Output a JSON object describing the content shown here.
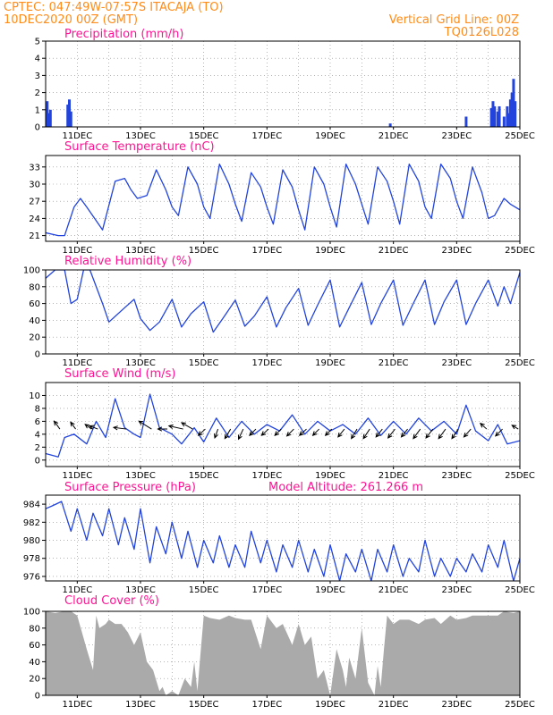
{
  "header": {
    "station": "CPTEC:   047:49W-07:57S   ITACAJA (TO)",
    "run": "10DEC2020 00Z (GMT)",
    "grid_note": "Vertical Grid Line: 00Z",
    "code": "TQ0126L028"
  },
  "colors": {
    "line": "#2244dd",
    "bar": "#2244dd",
    "cloud": "#aaaaaa",
    "grid": "#888888",
    "arrow": "#000000",
    "header": "#ff8c1a",
    "title": "#ff1493"
  },
  "xaxis": {
    "start_day": 10.0,
    "end_day": 25.0,
    "tick_days": [
      11,
      13,
      15,
      17,
      19,
      21,
      23,
      25
    ],
    "tick_labels": [
      "11DEC",
      "13DEC",
      "15DEC",
      "17DEC",
      "19DEC",
      "21DEC",
      "23DEC",
      "25DEC"
    ]
  },
  "chart_data": [
    {
      "id": "precip",
      "type": "bar",
      "title": "Precipitation (mm/h)",
      "units": "mm/h",
      "ylim": [
        0,
        5
      ],
      "yticks": [
        0,
        1,
        2,
        3,
        4,
        5
      ],
      "grid": true,
      "x_day": [
        10.05,
        10.1,
        10.15,
        10.7,
        10.75,
        10.8,
        20.9,
        23.3,
        24.1,
        24.15,
        24.2,
        24.3,
        24.35,
        24.5,
        24.6,
        24.65,
        24.7,
        24.75,
        24.8,
        24.85
      ],
      "values": [
        1.5,
        0.8,
        1.0,
        1.3,
        1.6,
        0.9,
        0.2,
        0.6,
        1.1,
        1.5,
        1.2,
        0.9,
        1.2,
        0.6,
        1.2,
        0.8,
        1.6,
        2.0,
        2.8,
        1.5
      ]
    },
    {
      "id": "temp",
      "type": "line",
      "title": "Surface Temperature (nC)",
      "units": "C",
      "ylim": [
        20,
        35
      ],
      "yticks": [
        21,
        24,
        27,
        30,
        33
      ],
      "grid": true,
      "x_day": [
        10.0,
        10.4,
        10.6,
        10.9,
        11.1,
        11.3,
        11.8,
        12.2,
        12.5,
        12.7,
        12.9,
        13.2,
        13.5,
        13.8,
        14.0,
        14.2,
        14.5,
        14.8,
        15.0,
        15.2,
        15.5,
        15.8,
        16.0,
        16.2,
        16.5,
        16.8,
        17.0,
        17.2,
        17.5,
        17.8,
        18.0,
        18.2,
        18.5,
        18.8,
        19.0,
        19.2,
        19.5,
        19.8,
        20.0,
        20.2,
        20.5,
        20.8,
        21.0,
        21.2,
        21.5,
        21.8,
        22.0,
        22.2,
        22.5,
        22.8,
        23.0,
        23.2,
        23.5,
        23.8,
        24.0,
        24.2,
        24.5,
        24.7,
        25.0
      ],
      "values": [
        21.5,
        21.0,
        21.0,
        26.0,
        27.5,
        26.0,
        22.0,
        30.5,
        31.0,
        29.0,
        27.5,
        28.0,
        32.5,
        29.0,
        26.0,
        24.5,
        33.0,
        30.0,
        26.0,
        24.0,
        33.5,
        30.0,
        26.5,
        23.5,
        32.0,
        29.5,
        26.0,
        23.0,
        32.5,
        29.5,
        25.5,
        22.0,
        33.0,
        30.0,
        26.0,
        22.5,
        33.5,
        30.0,
        26.5,
        23.0,
        33.0,
        30.5,
        27.0,
        23.0,
        33.5,
        30.5,
        26.0,
        24.0,
        33.5,
        31.0,
        27.0,
        24.0,
        33.0,
        28.5,
        24.0,
        24.5,
        27.5,
        26.5,
        25.5
      ]
    },
    {
      "id": "rh",
      "type": "line",
      "title": "Relative Humidity (%)",
      "units": "%",
      "ylim": [
        0,
        100
      ],
      "yticks": [
        0,
        20,
        40,
        60,
        80,
        100
      ],
      "grid": true,
      "x_day": [
        10.0,
        10.3,
        10.6,
        10.8,
        11.0,
        11.2,
        11.4,
        11.8,
        12.0,
        12.5,
        12.8,
        13.0,
        13.3,
        13.6,
        14.0,
        14.3,
        14.6,
        15.0,
        15.3,
        15.6,
        16.0,
        16.3,
        16.6,
        17.0,
        17.3,
        17.6,
        18.0,
        18.3,
        18.6,
        19.0,
        19.3,
        19.6,
        20.0,
        20.3,
        20.6,
        21.0,
        21.3,
        21.6,
        22.0,
        22.3,
        22.6,
        23.0,
        23.3,
        23.6,
        24.0,
        24.3,
        24.5,
        24.7,
        25.0
      ],
      "values": [
        90,
        100,
        100,
        60,
        65,
        100,
        100,
        60,
        38,
        55,
        65,
        42,
        28,
        38,
        65,
        32,
        48,
        62,
        26,
        42,
        64,
        33,
        45,
        68,
        32,
        55,
        78,
        34,
        58,
        88,
        32,
        55,
        85,
        35,
        60,
        88,
        34,
        58,
        88,
        35,
        62,
        88,
        35,
        60,
        88,
        57,
        80,
        60,
        97
      ]
    },
    {
      "id": "wind",
      "type": "line",
      "title": "Surface Wind (m/s)",
      "units": "m/s",
      "ylim": [
        -1,
        12
      ],
      "yticks": [
        0,
        2,
        4,
        6,
        8,
        10
      ],
      "grid": true,
      "x_day": [
        10.0,
        10.4,
        10.6,
        10.9,
        11.3,
        11.6,
        11.9,
        12.2,
        12.5,
        12.8,
        13.0,
        13.3,
        13.6,
        14.0,
        14.3,
        14.7,
        15.0,
        15.4,
        15.8,
        16.2,
        16.6,
        17.0,
        17.4,
        17.8,
        18.2,
        18.6,
        19.0,
        19.4,
        19.8,
        20.2,
        20.6,
        21.0,
        21.4,
        21.8,
        22.2,
        22.6,
        23.0,
        23.3,
        23.6,
        24.0,
        24.3,
        24.6,
        25.0
      ],
      "values": [
        1.0,
        0.5,
        3.5,
        4.0,
        2.5,
        6.0,
        3.5,
        9.5,
        5.0,
        4.0,
        3.5,
        10.2,
        5.0,
        4.0,
        2.5,
        5.0,
        2.8,
        6.5,
        3.5,
        6.0,
        4.0,
        5.5,
        4.5,
        7.0,
        4.0,
        6.0,
        4.5,
        5.5,
        4.0,
        6.5,
        3.8,
        6.0,
        4.0,
        6.5,
        4.5,
        6.0,
        4.0,
        8.5,
        4.5,
        3.0,
        5.5,
        2.5,
        3.0
      ],
      "arrows": [
        {
          "x": 10.45,
          "dx": -0.18,
          "dy": 0.25
        },
        {
          "x": 10.95,
          "dx": -0.16,
          "dy": 0.22
        },
        {
          "x": 11.45,
          "dx": -0.2,
          "dy": 0.15
        },
        {
          "x": 11.65,
          "dx": -0.26,
          "dy": 0.1
        },
        {
          "x": 12.55,
          "dx": -0.4,
          "dy": 0.05
        },
        {
          "x": 13.35,
          "dx": -0.4,
          "dy": 0.25
        },
        {
          "x": 13.85,
          "dx": -0.3,
          "dy": 0.0
        },
        {
          "x": 14.35,
          "dx": -0.45,
          "dy": 0.1
        },
        {
          "x": 14.65,
          "dx": -0.35,
          "dy": 0.2
        },
        {
          "x": 15.05,
          "dx": -0.22,
          "dy": -0.2
        },
        {
          "x": 15.45,
          "dx": -0.1,
          "dy": -0.28
        },
        {
          "x": 15.85,
          "dx": -0.18,
          "dy": -0.3
        },
        {
          "x": 16.25,
          "dx": -0.15,
          "dy": -0.32
        },
        {
          "x": 16.65,
          "dx": -0.2,
          "dy": -0.2
        },
        {
          "x": 17.05,
          "dx": -0.22,
          "dy": -0.2
        },
        {
          "x": 17.45,
          "dx": -0.2,
          "dy": -0.2
        },
        {
          "x": 17.85,
          "dx": -0.22,
          "dy": -0.22
        },
        {
          "x": 18.25,
          "dx": -0.22,
          "dy": -0.2
        },
        {
          "x": 18.65,
          "dx": -0.2,
          "dy": -0.2
        },
        {
          "x": 19.05,
          "dx": -0.2,
          "dy": -0.2
        },
        {
          "x": 19.45,
          "dx": -0.2,
          "dy": -0.25
        },
        {
          "x": 19.85,
          "dx": -0.18,
          "dy": -0.3
        },
        {
          "x": 20.25,
          "dx": -0.2,
          "dy": -0.3
        },
        {
          "x": 20.65,
          "dx": -0.2,
          "dy": -0.25
        },
        {
          "x": 21.05,
          "dx": -0.22,
          "dy": -0.28
        },
        {
          "x": 21.45,
          "dx": -0.2,
          "dy": -0.25
        },
        {
          "x": 21.85,
          "dx": -0.22,
          "dy": -0.3
        },
        {
          "x": 22.25,
          "dx": -0.22,
          "dy": -0.28
        },
        {
          "x": 22.65,
          "dx": -0.22,
          "dy": -0.3
        },
        {
          "x": 23.05,
          "dx": -0.2,
          "dy": -0.3
        },
        {
          "x": 23.45,
          "dx": -0.22,
          "dy": -0.25
        },
        {
          "x": 23.95,
          "dx": -0.2,
          "dy": 0.18
        },
        {
          "x": 24.45,
          "dx": -0.22,
          "dy": -0.22
        },
        {
          "x": 24.95,
          "dx": -0.2,
          "dy": 0.12
        }
      ]
    },
    {
      "id": "pressure",
      "type": "line",
      "title": "Surface Pressure (hPa)",
      "annotation": "Model Altitude: 261.266 m",
      "units": "hPa",
      "ylim": [
        975.5,
        985
      ],
      "yticks": [
        976,
        978,
        980,
        982,
        984
      ],
      "grid": true,
      "x_day": [
        10.0,
        10.2,
        10.5,
        10.8,
        11.0,
        11.3,
        11.5,
        11.8,
        12.0,
        12.3,
        12.5,
        12.8,
        13.0,
        13.3,
        13.5,
        13.8,
        14.0,
        14.3,
        14.5,
        14.8,
        15.0,
        15.3,
        15.5,
        15.8,
        16.0,
        16.3,
        16.5,
        16.8,
        17.0,
        17.3,
        17.5,
        17.8,
        18.0,
        18.3,
        18.5,
        18.8,
        19.0,
        19.3,
        19.5,
        19.8,
        20.0,
        20.3,
        20.5,
        20.8,
        21.0,
        21.3,
        21.5,
        21.8,
        22.0,
        22.3,
        22.5,
        22.8,
        23.0,
        23.3,
        23.5,
        23.8,
        24.0,
        24.3,
        24.5,
        24.8,
        25.0
      ],
      "values": [
        983.5,
        983.8,
        984.3,
        981.0,
        983.5,
        980.0,
        983.0,
        980.5,
        983.5,
        979.5,
        982.5,
        979.0,
        983.5,
        977.5,
        981.5,
        978.5,
        982.0,
        978.0,
        981.0,
        977.0,
        980.0,
        977.5,
        980.5,
        977.0,
        979.5,
        977.0,
        981.0,
        977.5,
        980.0,
        976.5,
        979.5,
        977.0,
        980.0,
        976.5,
        979.0,
        976.0,
        979.5,
        975.5,
        978.5,
        976.5,
        979.0,
        975.5,
        979.0,
        976.5,
        979.5,
        976.0,
        978.0,
        976.5,
        980.0,
        976.0,
        978.0,
        976.0,
        978.0,
        976.5,
        978.5,
        976.5,
        979.5,
        977.0,
        980.0,
        975.5,
        978.0
      ]
    },
    {
      "id": "cloud",
      "type": "area",
      "title": "Cloud Cover (%)",
      "units": "%",
      "ylim": [
        0,
        100
      ],
      "yticks": [
        0,
        20,
        40,
        60,
        80,
        100
      ],
      "grid": true,
      "x_day": [
        10.0,
        10.3,
        10.6,
        10.8,
        11.0,
        11.3,
        11.5,
        11.6,
        11.7,
        11.9,
        12.0,
        12.2,
        12.4,
        12.6,
        12.8,
        13.0,
        13.2,
        13.4,
        13.6,
        13.7,
        13.8,
        14.0,
        14.2,
        14.4,
        14.6,
        14.7,
        14.8,
        14.9,
        15.0,
        15.2,
        15.5,
        15.8,
        16.0,
        16.3,
        16.5,
        16.8,
        17.0,
        17.3,
        17.5,
        17.8,
        18.0,
        18.2,
        18.4,
        18.6,
        18.8,
        19.0,
        19.2,
        19.4,
        19.5,
        19.6,
        19.8,
        20.0,
        20.2,
        20.4,
        20.5,
        20.6,
        20.7,
        20.8,
        21.0,
        21.2,
        21.5,
        21.8,
        22.0,
        22.3,
        22.5,
        22.8,
        23.0,
        23.3,
        23.5,
        23.8,
        24.0,
        24.3,
        24.5,
        24.8,
        25.0
      ],
      "values": [
        100,
        98,
        100,
        100,
        95,
        55,
        30,
        95,
        80,
        85,
        90,
        85,
        85,
        75,
        60,
        75,
        40,
        30,
        5,
        10,
        0,
        5,
        0,
        20,
        10,
        40,
        5,
        50,
        95,
        92,
        90,
        95,
        92,
        90,
        90,
        55,
        95,
        80,
        85,
        60,
        85,
        60,
        70,
        20,
        30,
        0,
        55,
        30,
        10,
        45,
        20,
        80,
        15,
        0,
        35,
        10,
        55,
        95,
        85,
        90,
        90,
        85,
        90,
        92,
        85,
        95,
        90,
        92,
        95,
        95,
        95,
        95,
        100,
        98,
        100
      ]
    }
  ]
}
